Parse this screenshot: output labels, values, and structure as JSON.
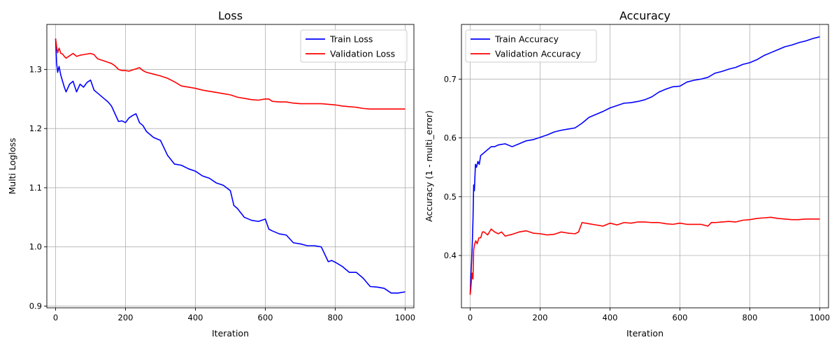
{
  "chart_data": [
    {
      "type": "line",
      "title": "Loss",
      "xlabel": "Iteration",
      "ylabel": "Multi Logloss",
      "xlim": [
        -25,
        1025
      ],
      "ylim": [
        0.897,
        1.376
      ],
      "xticks": [
        0,
        200,
        400,
        600,
        800,
        1000
      ],
      "yticks": [
        0.9,
        1.0,
        1.1,
        1.2,
        1.3
      ],
      "ytick_labels": [
        "0.9",
        "1.0",
        "1.1",
        "1.2",
        "1.3"
      ],
      "grid": true,
      "legend_position": "top-right",
      "series": [
        {
          "name": "Train Loss",
          "color": "#0000ff",
          "x": [
            0,
            3,
            6,
            10,
            15,
            20,
            25,
            30,
            40,
            50,
            60,
            70,
            80,
            90,
            100,
            110,
            120,
            130,
            140,
            150,
            160,
            170,
            180,
            190,
            200,
            210,
            220,
            230,
            240,
            250,
            260,
            270,
            280,
            300,
            320,
            340,
            360,
            380,
            400,
            420,
            440,
            460,
            480,
            500,
            510,
            520,
            540,
            560,
            580,
            600,
            610,
            620,
            640,
            660,
            680,
            700,
            720,
            740,
            760,
            780,
            790,
            800,
            820,
            840,
            860,
            880,
            900,
            920,
            940,
            960,
            980,
            1000
          ],
          "y": [
            1.352,
            1.31,
            1.295,
            1.305,
            1.29,
            1.28,
            1.27,
            1.262,
            1.275,
            1.28,
            1.262,
            1.275,
            1.27,
            1.278,
            1.282,
            1.265,
            1.26,
            1.255,
            1.25,
            1.245,
            1.238,
            1.225,
            1.212,
            1.213,
            1.21,
            1.218,
            1.222,
            1.225,
            1.21,
            1.205,
            1.195,
            1.19,
            1.185,
            1.18,
            1.155,
            1.14,
            1.138,
            1.132,
            1.128,
            1.12,
            1.116,
            1.108,
            1.104,
            1.095,
            1.07,
            1.065,
            1.05,
            1.045,
            1.043,
            1.047,
            1.03,
            1.027,
            1.022,
            1.02,
            1.007,
            1.005,
            1.002,
            1.002,
            1.0,
            0.975,
            0.977,
            0.974,
            0.967,
            0.957,
            0.957,
            0.947,
            0.933,
            0.932,
            0.93,
            0.922,
            0.922,
            0.924
          ]
        },
        {
          "name": "Validation Loss",
          "color": "#ff0000",
          "x": [
            0,
            3,
            6,
            10,
            15,
            20,
            25,
            30,
            40,
            50,
            60,
            70,
            80,
            90,
            100,
            110,
            120,
            130,
            140,
            150,
            160,
            170,
            180,
            190,
            200,
            210,
            220,
            230,
            240,
            250,
            260,
            280,
            300,
            320,
            340,
            360,
            380,
            400,
            420,
            440,
            460,
            480,
            500,
            520,
            540,
            560,
            580,
            600,
            610,
            620,
            640,
            660,
            680,
            700,
            720,
            740,
            760,
            780,
            800,
            820,
            840,
            860,
            880,
            900,
            920,
            940,
            960,
            980,
            1000
          ],
          "y": [
            1.352,
            1.338,
            1.328,
            1.336,
            1.327,
            1.326,
            1.322,
            1.319,
            1.323,
            1.327,
            1.322,
            1.324,
            1.325,
            1.326,
            1.327,
            1.325,
            1.318,
            1.316,
            1.314,
            1.312,
            1.31,
            1.306,
            1.3,
            1.298,
            1.298,
            1.297,
            1.299,
            1.301,
            1.303,
            1.298,
            1.295,
            1.292,
            1.289,
            1.285,
            1.279,
            1.272,
            1.27,
            1.268,
            1.265,
            1.263,
            1.261,
            1.259,
            1.257,
            1.253,
            1.251,
            1.249,
            1.248,
            1.25,
            1.25,
            1.246,
            1.245,
            1.245,
            1.243,
            1.242,
            1.242,
            1.242,
            1.242,
            1.241,
            1.24,
            1.238,
            1.237,
            1.236,
            1.234,
            1.233,
            1.233,
            1.233,
            1.233,
            1.233,
            1.233
          ]
        }
      ]
    },
    {
      "type": "line",
      "title": "Accuracy",
      "xlabel": "Iteration",
      "ylabel": "Accuracy (1 - multi_error)",
      "xlim": [
        -25,
        1025
      ],
      "ylim": [
        0.311,
        0.793
      ],
      "xticks": [
        0,
        200,
        400,
        600,
        800,
        1000
      ],
      "yticks": [
        0.4,
        0.5,
        0.6,
        0.7
      ],
      "ytick_labels": [
        "0.4",
        "0.5",
        "0.6",
        "0.7"
      ],
      "grid": true,
      "legend_position": "top-left",
      "series": [
        {
          "name": "Train Accuracy",
          "color": "#0000ff",
          "x": [
            0,
            2,
            4,
            6,
            8,
            10,
            12,
            15,
            18,
            22,
            26,
            30,
            40,
            50,
            60,
            70,
            80,
            100,
            120,
            140,
            160,
            180,
            200,
            220,
            240,
            260,
            280,
            300,
            320,
            340,
            360,
            380,
            400,
            420,
            440,
            460,
            480,
            500,
            520,
            540,
            560,
            580,
            600,
            620,
            640,
            660,
            680,
            700,
            720,
            740,
            760,
            780,
            800,
            820,
            840,
            860,
            880,
            900,
            920,
            940,
            960,
            980,
            1000
          ],
          "y": [
            0.335,
            0.365,
            0.39,
            0.42,
            0.46,
            0.52,
            0.51,
            0.555,
            0.55,
            0.56,
            0.555,
            0.57,
            0.575,
            0.58,
            0.585,
            0.585,
            0.588,
            0.59,
            0.585,
            0.59,
            0.595,
            0.597,
            0.601,
            0.605,
            0.61,
            0.613,
            0.615,
            0.617,
            0.625,
            0.635,
            0.64,
            0.645,
            0.651,
            0.655,
            0.659,
            0.66,
            0.662,
            0.665,
            0.67,
            0.678,
            0.683,
            0.687,
            0.688,
            0.695,
            0.698,
            0.7,
            0.703,
            0.71,
            0.713,
            0.717,
            0.72,
            0.725,
            0.728,
            0.733,
            0.74,
            0.745,
            0.75,
            0.755,
            0.758,
            0.762,
            0.765,
            0.769,
            0.772
          ]
        },
        {
          "name": "Validation Accuracy",
          "color": "#ff0000",
          "x": [
            0,
            2,
            4,
            6,
            8,
            10,
            13,
            16,
            20,
            25,
            30,
            35,
            40,
            50,
            60,
            70,
            80,
            90,
            100,
            120,
            140,
            160,
            180,
            200,
            220,
            240,
            260,
            280,
            300,
            310,
            320,
            340,
            360,
            380,
            400,
            420,
            440,
            460,
            480,
            500,
            520,
            540,
            560,
            580,
            600,
            620,
            640,
            660,
            680,
            690,
            700,
            720,
            740,
            760,
            780,
            800,
            820,
            840,
            860,
            880,
            900,
            920,
            940,
            960,
            980,
            1000
          ],
          "y": [
            0.333,
            0.345,
            0.36,
            0.37,
            0.36,
            0.41,
            0.42,
            0.425,
            0.42,
            0.43,
            0.43,
            0.44,
            0.44,
            0.435,
            0.445,
            0.44,
            0.437,
            0.44,
            0.433,
            0.436,
            0.44,
            0.442,
            0.438,
            0.437,
            0.435,
            0.436,
            0.44,
            0.438,
            0.437,
            0.44,
            0.456,
            0.454,
            0.452,
            0.45,
            0.455,
            0.452,
            0.456,
            0.455,
            0.457,
            0.457,
            0.456,
            0.456,
            0.454,
            0.453,
            0.455,
            0.453,
            0.453,
            0.453,
            0.45,
            0.456,
            0.456,
            0.457,
            0.458,
            0.457,
            0.46,
            0.461,
            0.463,
            0.464,
            0.465,
            0.463,
            0.462,
            0.461,
            0.461,
            0.462,
            0.462,
            0.462
          ]
        }
      ]
    }
  ]
}
